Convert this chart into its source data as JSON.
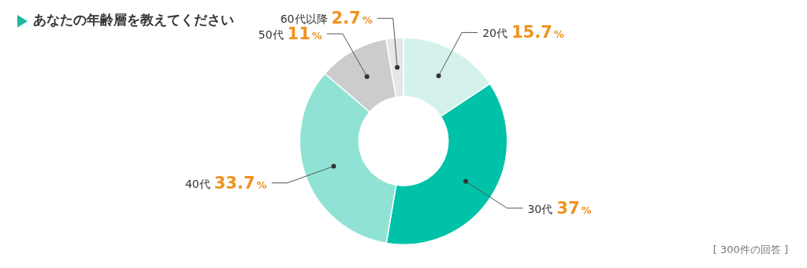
{
  "chart_data": {
    "type": "donut",
    "title": "あなたの年齢層を教えてください",
    "categories": [
      "20代",
      "30代",
      "40代",
      "50代",
      "60代以降"
    ],
    "values": [
      15.7,
      37,
      33.7,
      11,
      2.7
    ],
    "value_labels": [
      "15.7%",
      "37%",
      "33.7%",
      "11%",
      "2.7%"
    ],
    "colors": [
      "#d4f2eb",
      "#00c2a9",
      "#90e3d4",
      "#cccccc",
      "#e6e6e6"
    ],
    "legend": false,
    "annotations": [
      "[ 300件の回答 ]"
    ]
  }
}
